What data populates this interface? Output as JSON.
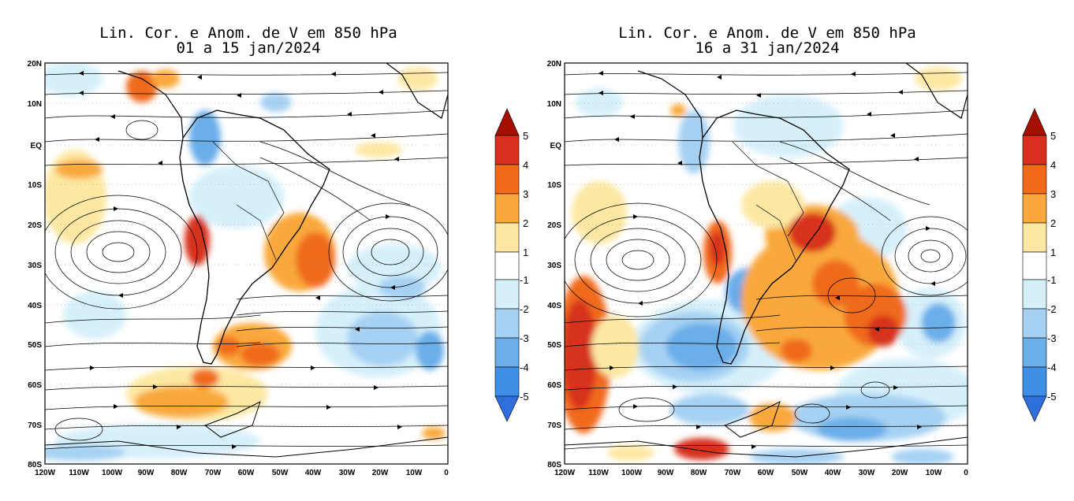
{
  "maps": [
    {
      "title_line1": "Lin. Cor. e Anom. de V em 850 hPa",
      "title_line2": "01 a 15 jan/2024"
    },
    {
      "title_line1": "Lin. Cor. e Anom. de V em 850 hPa",
      "title_line2": "16 a 31 jan/2024"
    }
  ],
  "lat_labels": [
    "20N",
    "10N",
    "EQ",
    "10S",
    "20S",
    "30S",
    "40S",
    "50S",
    "60S",
    "70S",
    "80S"
  ],
  "lon_labels": [
    "120W",
    "110W",
    "100W",
    "90W",
    "80W",
    "70W",
    "60W",
    "50W",
    "40W",
    "30W",
    "20W",
    "10W",
    "0"
  ],
  "colorbar": {
    "ticks": [
      "5",
      "4",
      "3",
      "2",
      "1",
      "-1",
      "-2",
      "-3",
      "-4",
      "-5"
    ],
    "colors": [
      "#a50f00",
      "#d7301f",
      "#f06a1a",
      "#f9a93b",
      "#fde8a3",
      "#ffffff",
      "#d6f0fa",
      "#a6d1f3",
      "#6aaeea",
      "#3f8fe6",
      "#2f6fdc"
    ]
  },
  "anomaly_colors": {
    "pos1": "#fde8a3",
    "pos2": "#f9a93b",
    "pos3": "#f06a1a",
    "pos4": "#d7301f",
    "neg1": "#d6f0fa",
    "neg2": "#a6d1f3",
    "neg3": "#6aaeea",
    "neg4": "#3f8fe6"
  }
}
